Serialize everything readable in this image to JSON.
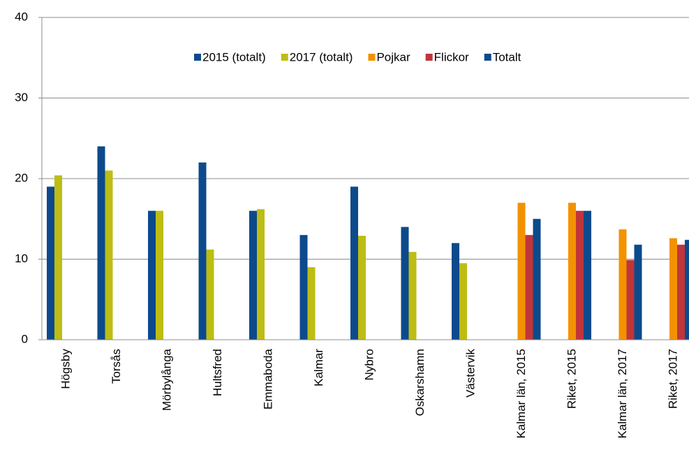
{
  "chart_data": {
    "type": "bar",
    "categories": [
      "Högsby",
      "Torsås",
      "Mörbylånga",
      "Hultsfred",
      "Emmaboda",
      "Kalmar",
      "Nybro",
      "Oskarshamn",
      "Västervik",
      "Kalmar län, 2015",
      "Riket, 2015",
      "Kalmar län, 2017",
      "Riket, 2017"
    ],
    "series": [
      {
        "name": "2015 (totalt)",
        "color": "#0d4a8c",
        "values": [
          19,
          24,
          16,
          22,
          16,
          13,
          19,
          14,
          12,
          null,
          null,
          null,
          null
        ]
      },
      {
        "name": "2017 (totalt)",
        "color": "#bdbd14",
        "values": [
          20.4,
          21,
          16,
          11.2,
          16.2,
          9,
          12.9,
          10.9,
          9.5,
          null,
          null,
          null,
          null
        ]
      },
      {
        "name": "Pojkar",
        "color": "#f39200",
        "values": [
          null,
          null,
          null,
          null,
          null,
          null,
          null,
          null,
          null,
          17,
          17,
          13.7,
          12.6
        ]
      },
      {
        "name": "Flickor",
        "color": "#c0353a",
        "values": [
          null,
          null,
          null,
          null,
          null,
          null,
          null,
          null,
          null,
          13,
          16,
          9.9,
          11.8
        ]
      },
      {
        "name": "Totalt",
        "color": "#0d4a8c",
        "values": [
          null,
          null,
          null,
          null,
          null,
          null,
          null,
          null,
          null,
          15,
          16,
          11.8,
          12.4
        ]
      }
    ],
    "ylim": [
      0,
      40
    ],
    "yticks": [
      0,
      10,
      20,
      30,
      40
    ],
    "grid": true,
    "legend": "top"
  }
}
